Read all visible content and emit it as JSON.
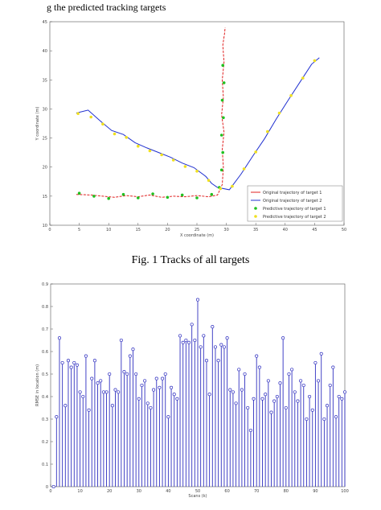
{
  "header_text": "g the predicted tracking targets",
  "figure1": {
    "caption": "Fig. 1 Tracks of all targets"
  },
  "chart_data": [
    {
      "type": "line",
      "xlabel": "X coordinate (m)",
      "ylabel": "Y coordinate (m)",
      "xlim": [
        0,
        50
      ],
      "ylim": [
        10,
        45
      ],
      "xticks": [
        "0",
        "5",
        "10",
        "15",
        "20",
        "25",
        "30",
        "35",
        "40",
        "45",
        "50"
      ],
      "yticks": [
        "10",
        "15",
        "20",
        "25",
        "30",
        "35",
        "40",
        "45"
      ],
      "legend_position": "bottom-right",
      "colors": [
        "#e02020",
        "#2030d0",
        "#20c020",
        "#f0e020"
      ],
      "series": [
        {
          "name": "Original trajectory of target 1",
          "style": "line",
          "x": [
            4.5,
            7,
            9,
            11,
            13,
            15,
            17,
            19,
            21,
            23,
            25,
            27,
            28.5,
            29.3,
            29.5,
            29.3,
            29.6,
            29.2,
            29.5,
            29.3,
            29.6,
            29.4,
            29.7,
            29.8
          ],
          "y": [
            15.3,
            15.2,
            15,
            14.8,
            15.1,
            14.9,
            15.2,
            14.8,
            15,
            14.9,
            15.1,
            14.9,
            15.2,
            17,
            20,
            23,
            26,
            29,
            32,
            35,
            38,
            41,
            43,
            44
          ]
        },
        {
          "name": "Original trajectory of target 2",
          "style": "line",
          "x": [
            4.5,
            6.5,
            8.5,
            10.5,
            12.5,
            14.5,
            16.5,
            18.5,
            20.5,
            22.5,
            24.5,
            26.5,
            27.5,
            28.5,
            30.5,
            32.5,
            34.5,
            36.5,
            38.5,
            40.5,
            42.5,
            44.5,
            45.8
          ],
          "y": [
            29.3,
            29.8,
            28,
            26.3,
            25.6,
            24.2,
            23.3,
            22.5,
            21.7,
            20.7,
            19.9,
            18.4,
            17.2,
            16.5,
            16.1,
            18.8,
            21.9,
            24.9,
            28.3,
            31.5,
            34.6,
            37.7,
            38.8
          ]
        },
        {
          "name": "Predictive trajectory of target 1",
          "style": "marker",
          "x": [
            5,
            7.5,
            10,
            12.5,
            15,
            17.5,
            20,
            22.5,
            25,
            27.5,
            28.8,
            29.2,
            29.4,
            29.2,
            29.5,
            29.3,
            29.6,
            29.4
          ],
          "y": [
            15.5,
            15,
            14.6,
            15.3,
            14.7,
            15.4,
            14.8,
            15.2,
            14.7,
            15.3,
            16.5,
            19.5,
            22.5,
            25.5,
            28.5,
            31.5,
            34.5,
            37.5
          ]
        },
        {
          "name": "Predictive trajectory of target 2",
          "style": "marker",
          "x": [
            4.8,
            7,
            9,
            11,
            13,
            15,
            17,
            19,
            21,
            23,
            25,
            27,
            29,
            31,
            33,
            35,
            37,
            39,
            41,
            43,
            45
          ],
          "y": [
            29.2,
            28.6,
            27.4,
            25.7,
            25.1,
            23.6,
            22.8,
            22.1,
            21.2,
            20.1,
            19.3,
            17.7,
            16.3,
            16.7,
            19.7,
            22.6,
            26.1,
            29.3,
            32.3,
            35.3,
            38.3
          ]
        }
      ]
    },
    {
      "type": "stem",
      "xlabel": "Scans (k)",
      "ylabel": "RMSE in location (m)",
      "xlim": [
        0,
        100
      ],
      "ylim": [
        0,
        0.9
      ],
      "xticks": [
        "0",
        "10",
        "20",
        "30",
        "40",
        "50",
        "60",
        "70",
        "80",
        "90",
        "100"
      ],
      "yticks": [
        "0",
        "0.1",
        "0.2",
        "0.3",
        "0.4",
        "0.5",
        "0.6",
        "0.7",
        "0.8",
        "0.9"
      ],
      "color": "#3030c0",
      "values": [
        0.0,
        0.31,
        0.66,
        0.55,
        0.36,
        0.56,
        0.53,
        0.55,
        0.54,
        0.42,
        0.4,
        0.58,
        0.34,
        0.48,
        0.56,
        0.46,
        0.47,
        0.42,
        0.42,
        0.5,
        0.36,
        0.43,
        0.42,
        0.65,
        0.51,
        0.5,
        0.58,
        0.61,
        0.5,
        0.39,
        0.45,
        0.47,
        0.37,
        0.35,
        0.43,
        0.48,
        0.44,
        0.48,
        0.5,
        0.31,
        0.44,
        0.41,
        0.39,
        0.67,
        0.64,
        0.65,
        0.64,
        0.72,
        0.65,
        0.83,
        0.62,
        0.67,
        0.56,
        0.41,
        0.71,
        0.62,
        0.56,
        0.63,
        0.62,
        0.66,
        0.43,
        0.42,
        0.37,
        0.52,
        0.43,
        0.5,
        0.35,
        0.25,
        0.39,
        0.58,
        0.53,
        0.39,
        0.41,
        0.47,
        0.33,
        0.38,
        0.4,
        0.46,
        0.66,
        0.35,
        0.5,
        0.52,
        0.42,
        0.38,
        0.47,
        0.45,
        0.3,
        0.4,
        0.34,
        0.55,
        0.47,
        0.59,
        0.3,
        0.36,
        0.45,
        0.53,
        0.31,
        0.4,
        0.39,
        0.42
      ]
    }
  ]
}
